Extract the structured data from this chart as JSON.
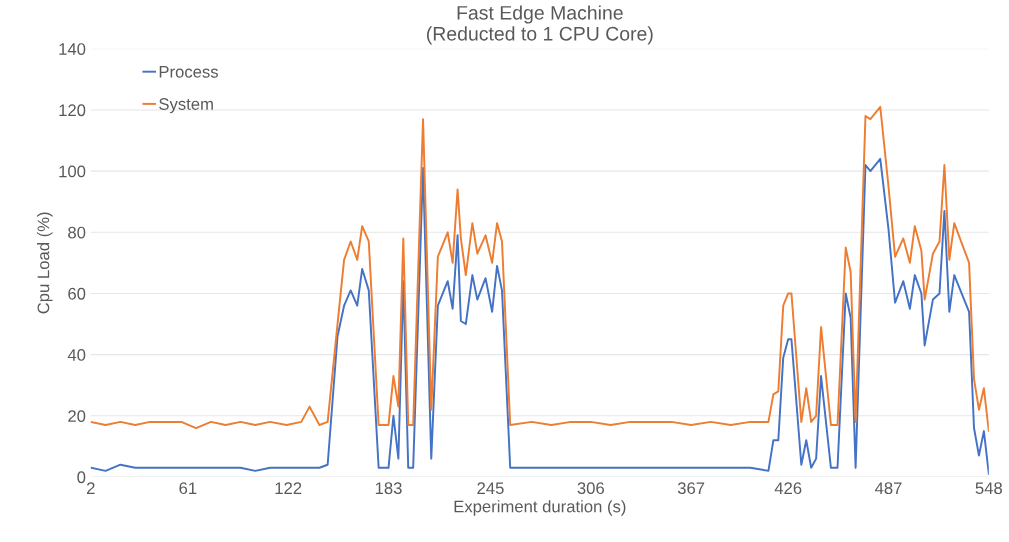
{
  "chart_data": {
    "type": "line",
    "title": "Fast Edge Machine\n(Reducted to 1 CPU Core)",
    "xlabel": "Experiment duration (s)",
    "ylabel": "Cpu Load (%)",
    "x": [
      2,
      11,
      20,
      29,
      38,
      48,
      57,
      66,
      75,
      84,
      93,
      102,
      111,
      121,
      130,
      135,
      141,
      146,
      152,
      156,
      160,
      164,
      167,
      171,
      177,
      183,
      186,
      189,
      192,
      195,
      198,
      204,
      209,
      213,
      219,
      222,
      225,
      227,
      230,
      234,
      237,
      242,
      246,
      249,
      252,
      257,
      270,
      282,
      294,
      306,
      318,
      330,
      342,
      355,
      367,
      379,
      391,
      403,
      414,
      417,
      420,
      423,
      426,
      428,
      434,
      437,
      440,
      443,
      446,
      452,
      456,
      461,
      464,
      467,
      473,
      476,
      482,
      487,
      491,
      496,
      500,
      503,
      507,
      509,
      514,
      518,
      521,
      524,
      527,
      536,
      539,
      542,
      545,
      548
    ],
    "series": [
      {
        "name": "Process",
        "color": "#4472c4",
        "values": [
          3,
          2,
          4,
          3,
          3,
          3,
          3,
          3,
          3,
          3,
          3,
          2,
          3,
          3,
          3,
          3,
          3,
          4,
          46,
          56,
          61,
          56,
          68,
          61,
          3,
          3,
          20,
          6,
          64,
          3,
          3,
          101,
          6,
          56,
          64,
          55,
          79,
          51,
          50,
          66,
          58,
          65,
          54,
          69,
          61,
          3,
          3,
          3,
          3,
          3,
          3,
          3,
          3,
          3,
          3,
          3,
          3,
          3,
          2,
          12,
          12,
          39,
          45,
          45,
          4,
          12,
          3,
          6,
          33,
          3,
          3,
          60,
          52,
          3,
          102,
          100,
          104,
          81,
          57,
          64,
          55,
          66,
          60,
          43,
          58,
          60,
          87,
          54,
          66,
          54,
          16,
          7,
          15,
          1
        ]
      },
      {
        "name": "System",
        "color": "#ed7d31",
        "values": [
          18,
          17,
          18,
          17,
          18,
          18,
          18,
          16,
          18,
          17,
          18,
          17,
          18,
          17,
          18,
          23,
          17,
          18,
          50,
          71,
          77,
          71,
          82,
          77,
          17,
          17,
          33,
          23,
          78,
          17,
          17,
          117,
          22,
          72,
          80,
          70,
          94,
          78,
          66,
          83,
          73,
          79,
          70,
          83,
          77,
          17,
          18,
          17,
          18,
          18,
          17,
          18,
          18,
          18,
          17,
          18,
          17,
          18,
          18,
          27,
          28,
          56,
          60,
          60,
          18,
          29,
          18,
          20,
          49,
          17,
          17,
          75,
          67,
          18,
          118,
          117,
          121,
          95,
          72,
          78,
          70,
          82,
          74,
          58,
          73,
          77,
          102,
          71,
          83,
          70,
          32,
          22,
          29,
          15
        ]
      }
    ],
    "xlim": [
      2,
      548
    ],
    "xticks": [
      2,
      61,
      122,
      183,
      245,
      306,
      367,
      426,
      487,
      548
    ],
    "ylim": [
      0,
      140
    ],
    "yticks": [
      0,
      20,
      40,
      60,
      80,
      100,
      120,
      140
    ],
    "grid": "y",
    "legend": "top left",
    "marker": "none",
    "line_style": "solid"
  }
}
